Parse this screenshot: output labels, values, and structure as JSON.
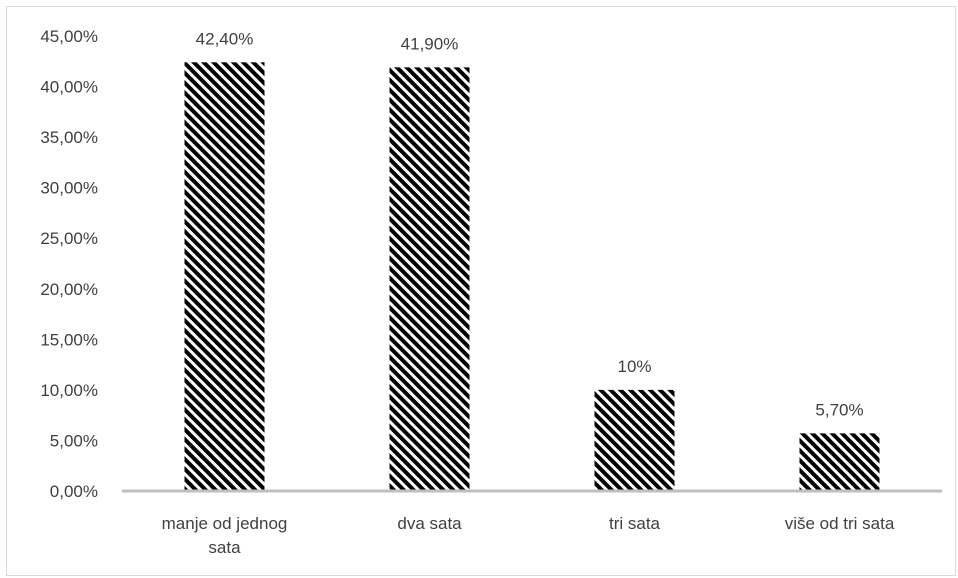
{
  "chart_data": {
    "type": "bar",
    "categories": [
      "manje od jednog sata",
      "dva sata",
      "tri sata",
      "više od tri sata"
    ],
    "category_lines": [
      [
        "manje od jednog",
        "sata"
      ],
      [
        "dva sata"
      ],
      [
        "tri sata"
      ],
      [
        "više od tri sata"
      ]
    ],
    "values": [
      42.4,
      41.9,
      10.0,
      5.7
    ],
    "data_labels": [
      "42,40%",
      "41,90%",
      "10%",
      "5,70%"
    ],
    "y_ticks": [
      "0,00%",
      "5,00%",
      "10,00%",
      "15,00%",
      "20,00%",
      "25,00%",
      "30,00%",
      "35,00%",
      "40,00%",
      "45,00%"
    ],
    "ylim": [
      0,
      45
    ],
    "grid": false,
    "legend": "none",
    "bar_pattern": "black-white diagonal hatch",
    "colors": {
      "bar": "#000000",
      "axis": "#bfbfbf",
      "text": "#404040",
      "border": "#d9d9d9"
    }
  }
}
